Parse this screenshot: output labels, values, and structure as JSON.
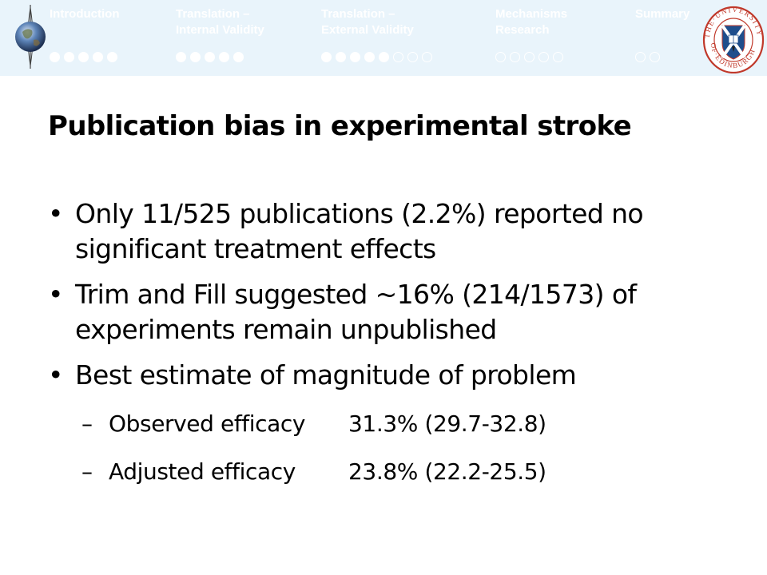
{
  "nav": {
    "sections": [
      {
        "title": "Introduction",
        "filled": 5,
        "empty": 0
      },
      {
        "title": "Translation –\nInternal Validity",
        "filled": 5,
        "empty": 0
      },
      {
        "title": "Translation –\nExternal Validity",
        "filled": 5,
        "empty": 3
      },
      {
        "title": "Mechanisms\nResearch",
        "filled": 0,
        "empty": 5
      },
      {
        "title": "Summary",
        "filled": 0,
        "empty": 2
      }
    ],
    "logo_text": "THE UNIVERSITY OF EDINBURGH"
  },
  "slide": {
    "title": "Publication bias in experimental stroke",
    "bullets": [
      {
        "text": "Only 11/525 publications (2.2%) reported no significant treatment effects"
      },
      {
        "text": "Trim and Fill suggested ~16% (214/1573) of experiments remain unpublished"
      },
      {
        "text": "Best estimate of magnitude of problem"
      }
    ],
    "sub_bullets": [
      {
        "label": "Observed efficacy",
        "value": "31.3% (29.7-32.8)"
      },
      {
        "label": "Adjusted efficacy",
        "value": "23.8% (22.2-25.5)"
      }
    ],
    "bullet_char": "•",
    "dash_char": "–"
  },
  "colors": {
    "nav_bg": "#e9f4fb",
    "active_text": "#4d4d4d",
    "inactive_text": "#ffffff",
    "seal_red": "#c0392b",
    "seal_blue": "#1f4e8c"
  }
}
